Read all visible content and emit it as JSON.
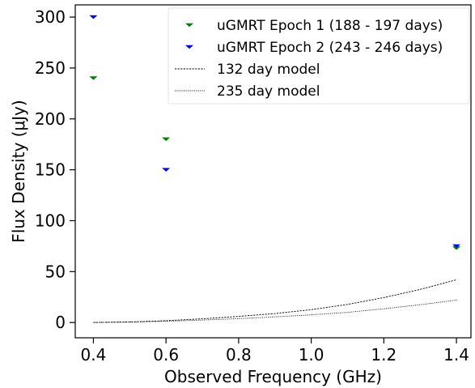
{
  "chart_data": {
    "type": "scatter",
    "title": "",
    "xlabel": "Observed Frequency (GHz)",
    "ylabel": "Flux Density (μJy)",
    "xlim": [
      0.35,
      1.44
    ],
    "ylim": [
      -15,
      312
    ],
    "x_ticks": [
      0.4,
      0.6,
      0.8,
      1.0,
      1.2,
      1.4
    ],
    "x_tick_labels": [
      "0.4",
      "0.6",
      "0.8",
      "1.0",
      "1.2",
      "1.4"
    ],
    "y_ticks": [
      0,
      50,
      100,
      150,
      200,
      250,
      300
    ],
    "y_tick_labels": [
      "0",
      "50",
      "100",
      "150",
      "200",
      "250",
      "300"
    ],
    "grid": false,
    "legend_position": "top-right",
    "series": [
      {
        "name": "uGMRT Epoch 1 (188 - 197 days)",
        "kind": "upper-limit",
        "color": "#008000",
        "points": [
          {
            "x": 0.4,
            "y": 240
          },
          {
            "x": 0.6,
            "y": 180
          },
          {
            "x": 1.4,
            "y": 73
          }
        ]
      },
      {
        "name": "uGMRT Epoch 2 (243 - 246 days)",
        "kind": "upper-limit",
        "color": "#0000ff",
        "points": [
          {
            "x": 0.4,
            "y": 300
          },
          {
            "x": 0.6,
            "y": 150
          },
          {
            "x": 1.4,
            "y": 75
          }
        ]
      },
      {
        "name": "132 day model",
        "kind": "line",
        "style": "dashed",
        "color": "#000000",
        "points": [
          {
            "x": 0.4,
            "y": 0.0
          },
          {
            "x": 0.5,
            "y": 0.5
          },
          {
            "x": 0.6,
            "y": 1.8
          },
          {
            "x": 0.7,
            "y": 3.6
          },
          {
            "x": 0.8,
            "y": 6.0
          },
          {
            "x": 0.9,
            "y": 8.8
          },
          {
            "x": 1.0,
            "y": 12.6
          },
          {
            "x": 1.1,
            "y": 17.8
          },
          {
            "x": 1.2,
            "y": 24.5
          },
          {
            "x": 1.3,
            "y": 32.5
          },
          {
            "x": 1.4,
            "y": 42.0
          }
        ]
      },
      {
        "name": "235 day model",
        "kind": "line",
        "style": "dotted",
        "color": "#000000",
        "points": [
          {
            "x": 0.4,
            "y": 0.0
          },
          {
            "x": 0.5,
            "y": 0.4
          },
          {
            "x": 0.6,
            "y": 1.2
          },
          {
            "x": 0.7,
            "y": 2.4
          },
          {
            "x": 0.8,
            "y": 3.8
          },
          {
            "x": 0.9,
            "y": 5.5
          },
          {
            "x": 1.0,
            "y": 7.5
          },
          {
            "x": 1.1,
            "y": 10.0
          },
          {
            "x": 1.2,
            "y": 13.5
          },
          {
            "x": 1.3,
            "y": 17.5
          },
          {
            "x": 1.4,
            "y": 22.0
          }
        ]
      }
    ]
  }
}
